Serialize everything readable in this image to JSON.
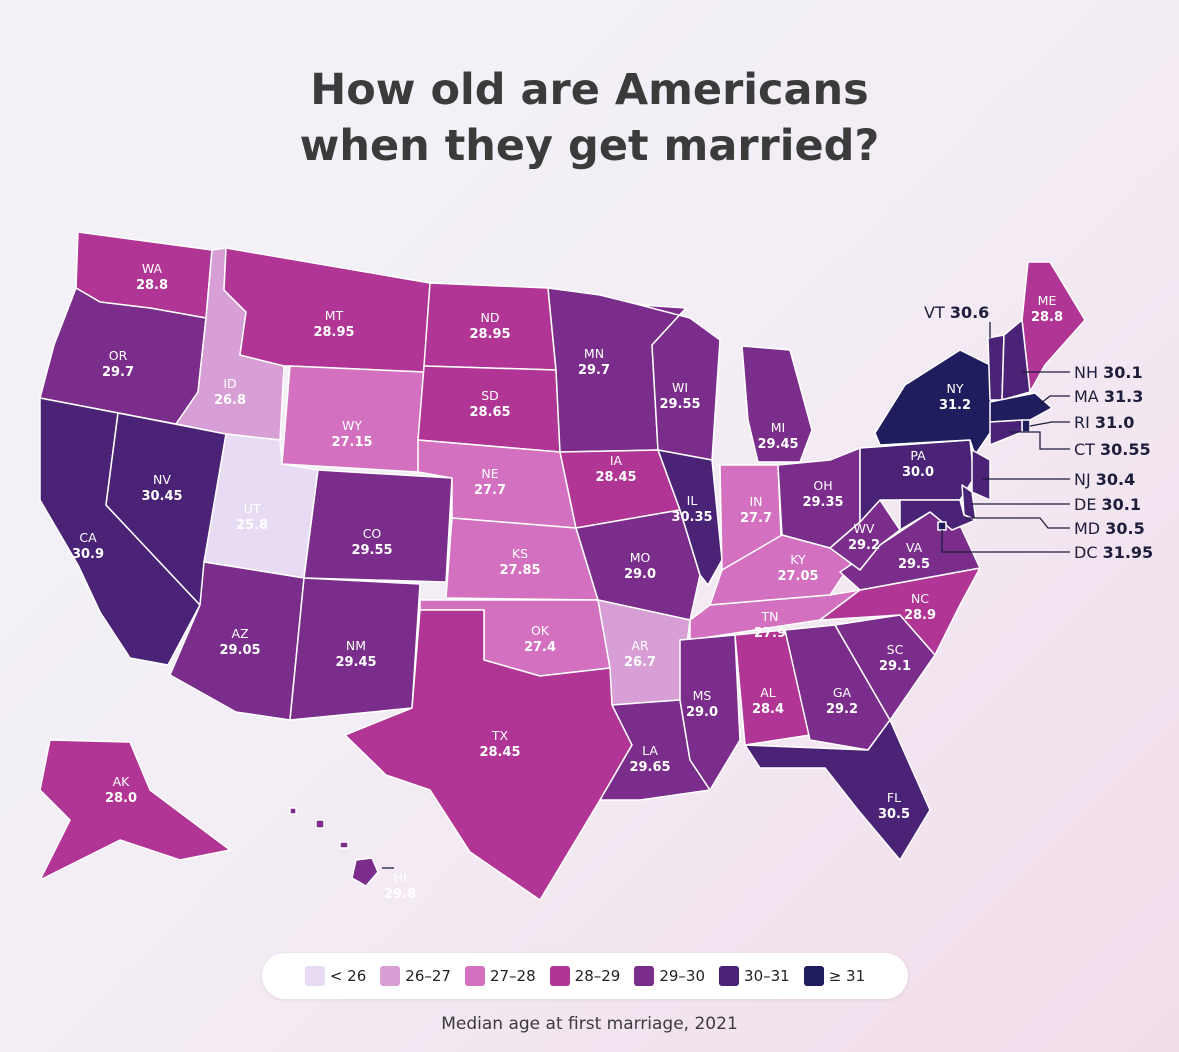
{
  "title": {
    "line1": "How old are Americans",
    "line2": "when they get married?"
  },
  "caption": "Median age at first marriage, 2021",
  "bins": [
    {
      "label": "< 26",
      "color": "#e7dcf3"
    },
    {
      "label": "26–27",
      "color": "#d79fd5"
    },
    {
      "label": "27–28",
      "color": "#d370bf"
    },
    {
      "label": "28–29",
      "color": "#b03594"
    },
    {
      "label": "29–30",
      "color": "#7a2d8a"
    },
    {
      "label": "30–31",
      "color": "#4a2377"
    },
    {
      "label": "≥ 31",
      "color": "#1f1d5e"
    }
  ],
  "states": [
    {
      "abbr": "WA",
      "value": "28.8"
    },
    {
      "abbr": "OR",
      "value": "29.7"
    },
    {
      "abbr": "CA",
      "value": "30.9"
    },
    {
      "abbr": "NV",
      "value": "30.45"
    },
    {
      "abbr": "ID",
      "value": "26.8"
    },
    {
      "abbr": "UT",
      "value": "25.8"
    },
    {
      "abbr": "AZ",
      "value": "29.05"
    },
    {
      "abbr": "MT",
      "value": "28.95"
    },
    {
      "abbr": "WY",
      "value": "27.15"
    },
    {
      "abbr": "CO",
      "value": "29.55"
    },
    {
      "abbr": "NM",
      "value": "29.45"
    },
    {
      "abbr": "ND",
      "value": "28.95"
    },
    {
      "abbr": "SD",
      "value": "28.65"
    },
    {
      "abbr": "NE",
      "value": "27.7"
    },
    {
      "abbr": "KS",
      "value": "27.85"
    },
    {
      "abbr": "OK",
      "value": "27.4"
    },
    {
      "abbr": "TX",
      "value": "28.45"
    },
    {
      "abbr": "MN",
      "value": "29.7"
    },
    {
      "abbr": "IA",
      "value": "28.45"
    },
    {
      "abbr": "MO",
      "value": "29.0"
    },
    {
      "abbr": "AR",
      "value": "26.7"
    },
    {
      "abbr": "LA",
      "value": "29.65"
    },
    {
      "abbr": "WI",
      "value": "29.55"
    },
    {
      "abbr": "IL",
      "value": "30.35"
    },
    {
      "abbr": "MI",
      "value": "29.45"
    },
    {
      "abbr": "IN",
      "value": "27.7"
    },
    {
      "abbr": "OH",
      "value": "29.35"
    },
    {
      "abbr": "KY",
      "value": "27.05"
    },
    {
      "abbr": "TN",
      "value": "27.9"
    },
    {
      "abbr": "MS",
      "value": "29.0"
    },
    {
      "abbr": "AL",
      "value": "28.4"
    },
    {
      "abbr": "GA",
      "value": "29.2"
    },
    {
      "abbr": "FL",
      "value": "30.5"
    },
    {
      "abbr": "SC",
      "value": "29.1"
    },
    {
      "abbr": "NC",
      "value": "28.9"
    },
    {
      "abbr": "VA",
      "value": "29.5"
    },
    {
      "abbr": "WV",
      "value": "29.2"
    },
    {
      "abbr": "PA",
      "value": "30.0"
    },
    {
      "abbr": "NY",
      "value": "31.2"
    },
    {
      "abbr": "ME",
      "value": "28.8"
    },
    {
      "abbr": "AK",
      "value": "28.0"
    },
    {
      "abbr": "HI",
      "value": "29.8"
    },
    {
      "abbr": "VT",
      "value": "30.6"
    },
    {
      "abbr": "NH",
      "value": "30.1"
    },
    {
      "abbr": "MA",
      "value": "31.3"
    },
    {
      "abbr": "RI",
      "value": "31.0"
    },
    {
      "abbr": "CT",
      "value": "30.55"
    },
    {
      "abbr": "NJ",
      "value": "30.4"
    },
    {
      "abbr": "DE",
      "value": "30.1"
    },
    {
      "abbr": "MD",
      "value": "30.5"
    },
    {
      "abbr": "DC",
      "value": "31.95"
    }
  ]
}
